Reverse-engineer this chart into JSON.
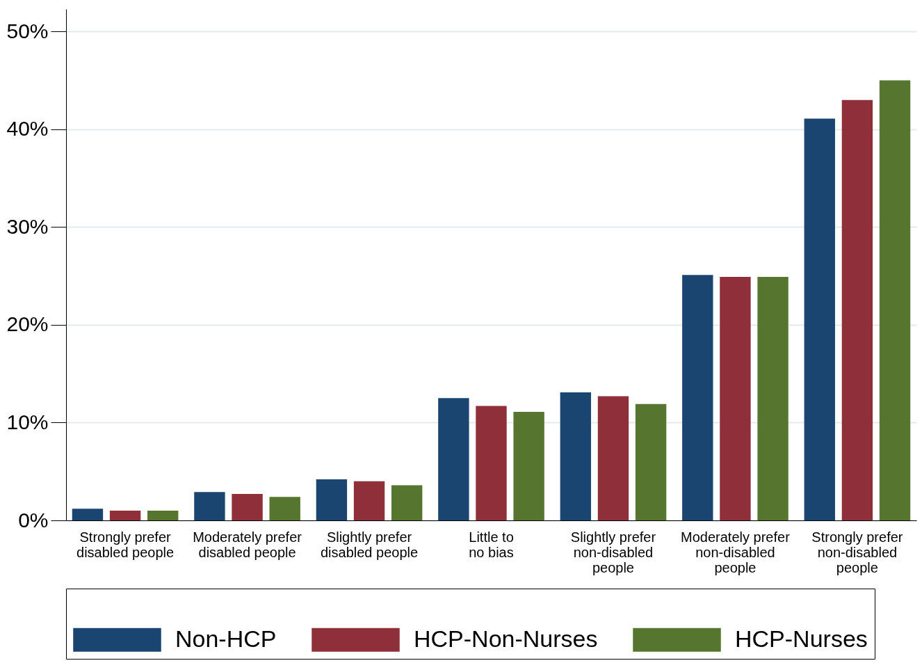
{
  "chart_data": {
    "type": "bar",
    "categories": [
      "Strongly prefer disabled people",
      "Moderately prefer disabled people",
      "Slightly prefer disabled people",
      "Little to no bias",
      "Slightly prefer non-disabled people",
      "Moderately prefer non-disabled people",
      "Strongly prefer non-disabled people"
    ],
    "series": [
      {
        "name": "Non-HCP",
        "color": "#1a4570",
        "values": [
          1.2,
          2.9,
          4.2,
          12.5,
          13.1,
          25.1,
          41.1
        ]
      },
      {
        "name": "HCP-Non-Nurses",
        "color": "#8e2f3a",
        "values": [
          1.0,
          2.7,
          4.0,
          11.7,
          12.7,
          24.9,
          43.0
        ]
      },
      {
        "name": "HCP-Nurses",
        "color": "#56752e",
        "values": [
          1.0,
          2.4,
          3.6,
          11.1,
          11.9,
          24.9,
          45.0
        ]
      }
    ],
    "ylim": [
      0,
      52.3
    ],
    "yticks": [
      {
        "value": 0,
        "label": "0%"
      },
      {
        "value": 10,
        "label": "10%"
      },
      {
        "value": 20,
        "label": "20%"
      },
      {
        "value": 30,
        "label": "30%"
      },
      {
        "value": 40,
        "label": "40%"
      },
      {
        "value": 50,
        "label": "50%"
      }
    ],
    "grid": "y",
    "legend": "bottom"
  }
}
